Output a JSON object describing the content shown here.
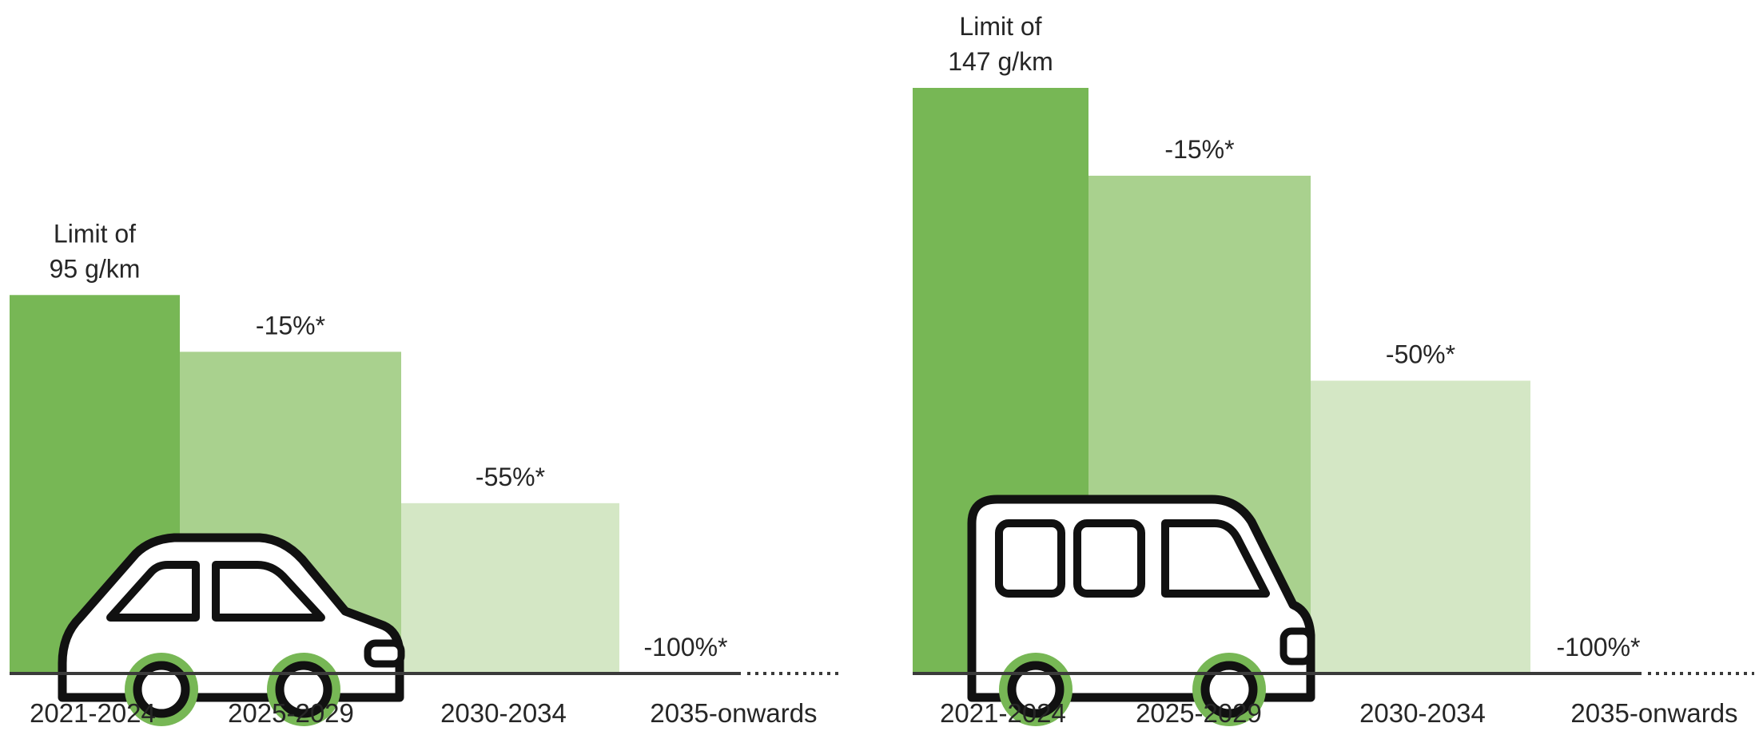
{
  "chart_data": [
    {
      "type": "bar",
      "categories": [
        "2021-2024",
        "2025-2029",
        "2030-2034",
        "2035-onwards"
      ],
      "values": [
        95,
        80.75,
        42.75,
        0
      ],
      "data_labels": [
        [
          "Limit of",
          "95 g/km"
        ],
        [
          "-15%*"
        ],
        [
          "-55%*"
        ],
        [
          "-100%*"
        ]
      ],
      "ylim": [
        0,
        147
      ],
      "colors": [
        "#77b755",
        "#a9d18e",
        "#d4e7c5",
        "#d4e7c5"
      ],
      "axis_color": "#3a3a3a",
      "grid": false,
      "axes_visible": false,
      "axis_continues": true,
      "icon": "car-icon"
    },
    {
      "type": "bar",
      "categories": [
        "2021-2024",
        "2025-2029",
        "2030-2034",
        "2035-onwards"
      ],
      "values": [
        147,
        124.95,
        73.5,
        0
      ],
      "data_labels": [
        [
          "Limit of",
          "147 g/km"
        ],
        [
          "-15%*"
        ],
        [
          "-50%*"
        ],
        [
          "-100%*"
        ]
      ],
      "ylim": [
        0,
        147
      ],
      "colors": [
        "#77b755",
        "#a9d18e",
        "#d4e7c5",
        "#d4e7c5"
      ],
      "axis_color": "#3a3a3a",
      "grid": false,
      "axes_visible": false,
      "axis_continues": true,
      "icon": "van-icon"
    }
  ]
}
